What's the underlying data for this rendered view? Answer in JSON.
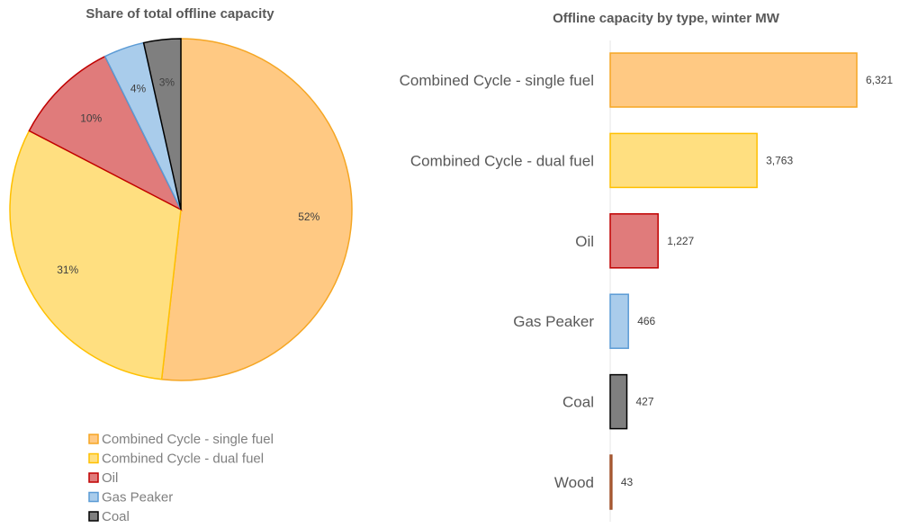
{
  "chart_data": [
    {
      "type": "pie",
      "title": "Share of total offline capacity",
      "slices": [
        {
          "name": "Combined Cycle - single fuel",
          "label": "52%",
          "fill": "#FFC983",
          "stroke": "#F5A623"
        },
        {
          "name": "Combined Cycle - dual fuel",
          "label": "31%",
          "fill": "#FFDF80",
          "stroke": "#FFC000"
        },
        {
          "name": "Oil",
          "label": "10%",
          "fill": "#E07B7B",
          "stroke": "#C00000"
        },
        {
          "name": "Gas Peaker",
          "label": "4%",
          "fill": "#A9CCEB",
          "stroke": "#5B9BD5"
        },
        {
          "name": "Coal",
          "label": "3%",
          "fill": "#7F7F7F",
          "stroke": "#000000"
        }
      ],
      "values": [
        52,
        31,
        10,
        4,
        3
      ],
      "legend": "bottom"
    },
    {
      "type": "bar",
      "orientation": "horizontal",
      "title": "Offline capacity by type, winter MW",
      "categories": [
        "Combined Cycle - single fuel",
        "Combined Cycle - dual fuel",
        "Oil",
        "Gas Peaker",
        "Coal",
        "Wood"
      ],
      "values": [
        6321,
        3763,
        1227,
        466,
        427,
        43
      ],
      "labels": [
        "6,321",
        "3,763",
        "1,227",
        "466",
        "427",
        "43"
      ],
      "fills": [
        "#FFC983",
        "#FFDF80",
        "#E07B7B",
        "#A9CCEB",
        "#7F7F7F",
        "#C07040"
      ],
      "strokes": [
        "#F5A623",
        "#FFC000",
        "#C00000",
        "#5B9BD5",
        "#000000",
        "#A0522D"
      ],
      "xlim": [
        0,
        6321
      ]
    }
  ]
}
